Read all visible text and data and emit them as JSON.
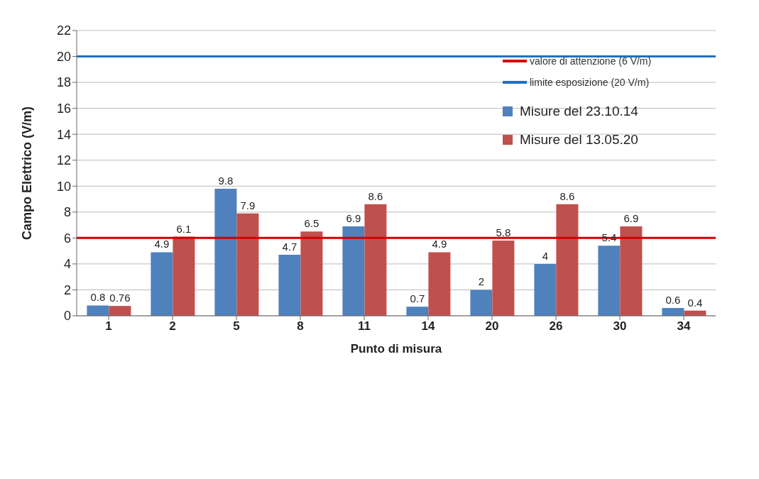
{
  "chart_data": {
    "type": "bar",
    "xlabel": "Punto di misura",
    "ylabel": "Campo Elettrico (V/m)",
    "categories": [
      "1",
      "2",
      "5",
      "8",
      "11",
      "14",
      "20",
      "26",
      "30",
      "34"
    ],
    "series": [
      {
        "name": "Misure del 23.10.14",
        "color": "#4f81bd",
        "values": [
          0.8,
          4.9,
          9.8,
          4.7,
          6.9,
          0.7,
          2,
          4,
          5.4,
          0.6
        ]
      },
      {
        "name": "Misure del 13.05.20",
        "color": "#c0504d",
        "values": [
          0.76,
          6.1,
          7.9,
          6.5,
          8.6,
          4.9,
          5.8,
          8.6,
          6.9,
          0.4
        ]
      }
    ],
    "ylim": [
      0,
      22
    ],
    "yticks": [
      0,
      2,
      4,
      6,
      8,
      10,
      12,
      14,
      16,
      18,
      20,
      22
    ],
    "grid": "y",
    "data_labels": true,
    "legend": "right",
    "ref_lines": [
      {
        "axis": "y",
        "value": 6,
        "label": "valore di attenzione (6 V/m)",
        "color": "#d40000"
      },
      {
        "axis": "y",
        "value": 20,
        "label": "limite esposizione (20 V/m)",
        "color": "#1f70c1"
      }
    ]
  }
}
